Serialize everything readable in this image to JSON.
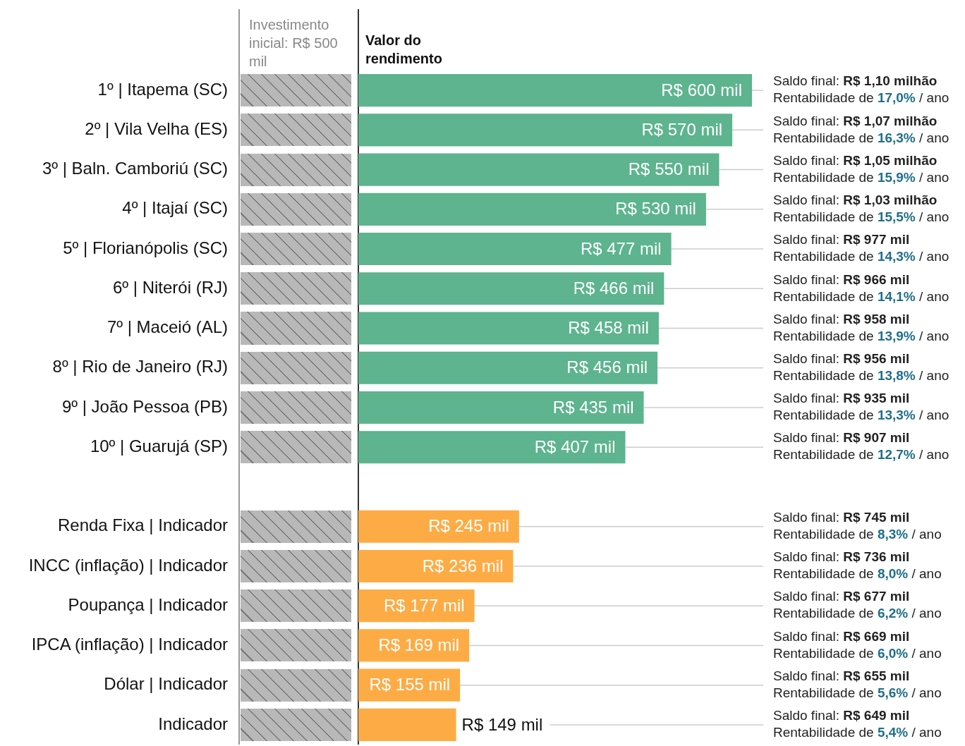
{
  "chart_data": {
    "type": "bar",
    "orientation": "horizontal",
    "title": "Valor do rendimento",
    "subtitle": "Investimento inicial: R$ 500 mil",
    "categories": [
      "1º | Itapema (SC)",
      "2º | Vila Velha (ES)",
      "3º | Baln. Camboriú (SC)",
      "4º | Itajaí (SC)",
      "5º | Florianópolis (SC)",
      "6º | Niterói (RJ)",
      "7º | Maceió (AL)",
      "8º | Rio de Janeiro (RJ)",
      "9º | João Pessoa (PB)",
      "10º | Guarujá (SP)",
      null,
      "Renda Fixa | Indicador",
      "INCC (inflação) | Indicador",
      "Poupança | Indicador",
      "IPCA (inflação) | Indicador",
      "Dólar | Indicador",
      "Indicador"
    ],
    "values": [
      600,
      570,
      550,
      530,
      477,
      466,
      458,
      456,
      435,
      407,
      null,
      245,
      236,
      177,
      169,
      155,
      149
    ],
    "value_labels": [
      "R$ 600 mil",
      "R$ 570 mil",
      "R$ 550 mil",
      "R$ 530 mil",
      "R$ 477 mil",
      "R$ 466 mil",
      "R$ 458 mil",
      "R$ 456 mil",
      "R$ 435 mil",
      "R$ 407 mil",
      null,
      "R$ 245 mil",
      "R$ 236 mil",
      "R$ 177 mil",
      "R$ 169 mil",
      "R$ 155 mil",
      "R$ 149 mil"
    ],
    "colors": [
      "#5db48e",
      "#5db48e",
      "#5db48e",
      "#5db48e",
      "#5db48e",
      "#5db48e",
      "#5db48e",
      "#5db48e",
      "#5db48e",
      "#5db48e",
      null,
      "#fdac45",
      "#fdac45",
      "#fdac45",
      "#fdac45",
      "#fdac45",
      "#fdac45"
    ],
    "annotations": [
      "Saldo final: R$ 1,10 milhão\nRentabilidade de 17,0% / ano",
      "Saldo final: R$ 1,07 milhão\nRentabilidade de 16,3% / ano",
      "Saldo final: R$ 1,05 milhão\nRentabilidade de 15,9% / ano",
      "Saldo final: R$ 1,03 milhão\nRentabilidade de 15,5% / ano",
      "Saldo final: R$ 977 mil\nRentabilidade de 14,3% / ano",
      "Saldo final: R$ 966 mil\nRentabilidade de 14,1% / ano",
      "Saldo final: R$ 958 mil\nRentabilidade de 13,9% / ano",
      "Saldo final: R$ 956 mil\nRentabilidade de 13,8% / ano",
      "Saldo final: R$ 935 mil\nRentabilidade de 13,3% / ano",
      "Saldo final: R$ 907 mil\nRentabilidade de 12,7% / ano",
      "Saldo final: R$ 745 mil\nRentabilidade de 8,3% / ano",
      "Saldo final: R$ 736 mil\nRentabilidade de 8,0% / ano",
      "Saldo final: R$ 677 mil\nRentabilidade de 6,2% / ano",
      "Saldo final: R$ 669 mil\nRentabilidade de 6,0% / ano",
      "Saldo final: R$ 655 mil\nRentabilidade de 5,6% / ano",
      "Saldo final: R$ 649 mil\nRentabilidade de 5,4% / ano"
    ]
  }
}
